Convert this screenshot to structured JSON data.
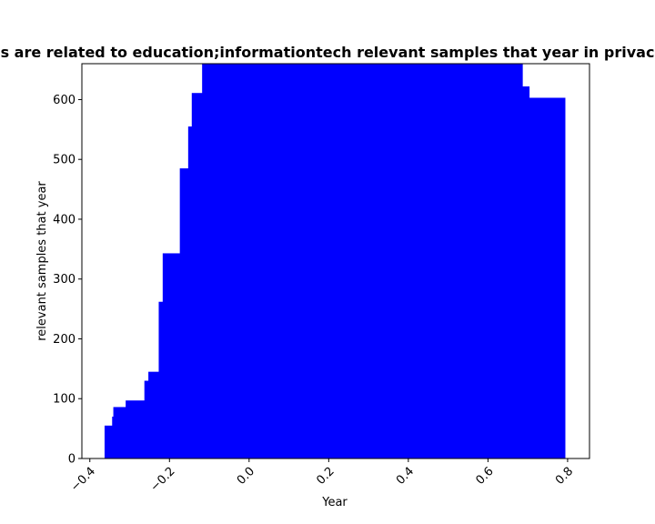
{
  "chart_data": {
    "type": "bar",
    "title": "s are related to education;informationtech relevant samples that year in privac",
    "xlabel": "Year",
    "ylabel": "relevant samples that year",
    "xlim": [
      -0.42,
      0.855
    ],
    "ylim": [
      0,
      660
    ],
    "bar_color": "#0000ff",
    "x_ticks": [
      -0.4,
      -0.2,
      0.0,
      0.2,
      0.4,
      0.6,
      0.8
    ],
    "x_tick_labels": [
      "−0.4",
      "−0.2",
      "0.0",
      "0.2",
      "0.4",
      "0.6",
      "0.8"
    ],
    "y_ticks": [
      0,
      100,
      200,
      300,
      400,
      500,
      600
    ],
    "y_tick_labels": [
      "0",
      "100",
      "200",
      "300",
      "400",
      "500",
      "600"
    ],
    "grid": false,
    "steps": [
      {
        "x0": -0.363,
        "x1": -0.344,
        "value": 55
      },
      {
        "x0": -0.344,
        "x1": -0.341,
        "value": 70
      },
      {
        "x0": -0.341,
        "x1": -0.31,
        "value": 86
      },
      {
        "x0": -0.31,
        "x1": -0.263,
        "value": 97
      },
      {
        "x0": -0.263,
        "x1": -0.253,
        "value": 130
      },
      {
        "x0": -0.253,
        "x1": -0.227,
        "value": 145
      },
      {
        "x0": -0.227,
        "x1": -0.217,
        "value": 262
      },
      {
        "x0": -0.217,
        "x1": -0.174,
        "value": 343
      },
      {
        "x0": -0.174,
        "x1": -0.153,
        "value": 485
      },
      {
        "x0": -0.153,
        "x1": -0.144,
        "value": 555
      },
      {
        "x0": -0.144,
        "x1": -0.118,
        "value": 611
      },
      {
        "x0": -0.118,
        "x1": 0.686,
        "value": 660
      },
      {
        "x0": 0.686,
        "x1": 0.703,
        "value": 622
      },
      {
        "x0": 0.703,
        "x1": 0.793,
        "value": 603
      }
    ]
  }
}
